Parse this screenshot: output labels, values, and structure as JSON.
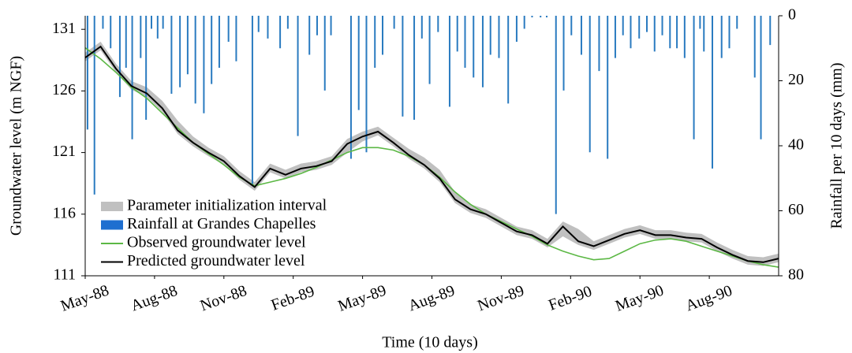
{
  "chart_data": {
    "type": "line",
    "x_label": "Time (10 days)",
    "y_label": "Groundwater level (m NGF)",
    "y2_label": "Rainfall per 10 days (mm)",
    "xlim": [
      0,
      90
    ],
    "xticks": [
      {
        "value": 0,
        "label": "May-88"
      },
      {
        "value": 9,
        "label": "Aug-88"
      },
      {
        "value": 18,
        "label": "Nov-88"
      },
      {
        "value": 27,
        "label": "Feb-89"
      },
      {
        "value": 36,
        "label": "May-89"
      },
      {
        "value": 45,
        "label": "Aug-89"
      },
      {
        "value": 54,
        "label": "Nov-89"
      },
      {
        "value": 63,
        "label": "Feb-90"
      },
      {
        "value": 72,
        "label": "May-90"
      },
      {
        "value": 81,
        "label": "Aug-90"
      }
    ],
    "ylim": [
      111,
      132.1
    ],
    "yticks": [
      111,
      116,
      121,
      126,
      131
    ],
    "y2lim": [
      0,
      80
    ],
    "y2ticks": [
      0,
      20,
      40,
      60,
      80
    ],
    "y2_inverted": true,
    "legend": "lower-left",
    "series": [
      {
        "name": "Parameter initialization interval",
        "type": "band",
        "color": "#c0c0c0",
        "x": [
          0,
          2,
          4,
          6,
          8,
          10,
          12,
          14,
          16,
          18,
          20,
          22,
          24,
          26,
          28,
          30,
          32,
          34,
          36,
          38,
          40,
          42,
          44,
          46,
          48,
          50,
          52,
          54,
          56,
          58,
          60,
          62,
          64,
          66,
          68,
          70,
          72,
          74,
          76,
          78,
          80,
          82,
          84,
          86,
          88,
          90
        ],
        "lower": [
          128.4,
          129.3,
          127.5,
          126.1,
          125.5,
          124.3,
          122.5,
          121.5,
          120.7,
          120.0,
          118.8,
          117.9,
          119.4,
          118.9,
          119.4,
          119.6,
          120.0,
          121.0,
          121.9,
          122.4,
          121.5,
          120.5,
          119.7,
          118.6,
          116.9,
          116.1,
          115.7,
          115.0,
          114.3,
          114.0,
          113.3,
          114.2,
          113.5,
          113.1,
          113.6,
          114.1,
          114.4,
          114.0,
          114.0,
          113.8,
          113.7,
          113.0,
          112.4,
          111.9,
          111.8,
          112.1
        ],
        "upper": [
          129.1,
          130.0,
          128.2,
          126.8,
          126.3,
          125.2,
          123.6,
          122.3,
          121.4,
          120.7,
          119.5,
          118.6,
          120.1,
          119.6,
          120.1,
          120.3,
          120.7,
          122.1,
          122.7,
          123.1,
          122.2,
          121.3,
          120.6,
          119.6,
          117.8,
          116.8,
          116.4,
          115.7,
          115.0,
          114.7,
          114.0,
          115.4,
          114.8,
          113.8,
          114.3,
          114.8,
          115.1,
          114.7,
          114.7,
          114.5,
          114.4,
          113.7,
          113.1,
          112.6,
          112.5,
          112.8
        ]
      },
      {
        "name": "Rainfall at Grandes Chapelles",
        "type": "bar",
        "axis": "y2",
        "color": "#2a7bc0",
        "x": [
          0.3,
          1.2,
          2.3,
          3.3,
          4.5,
          5.3,
          6.1,
          7.2,
          7.9,
          8.6,
          9.4,
          10.1,
          11.2,
          12.3,
          13.3,
          14.3,
          15.4,
          16.4,
          17.4,
          18.6,
          19.6,
          21.7,
          22.5,
          23.7,
          25.3,
          26.3,
          27.6,
          29.1,
          30.1,
          31.1,
          31.9,
          34.5,
          35.5,
          36.5,
          37.6,
          38.6,
          40.1,
          41.2,
          42.7,
          43.7,
          44.7,
          45.8,
          47.3,
          48.3,
          49.3,
          50.4,
          51.6,
          52.6,
          53.7,
          54.9,
          56.0,
          57.0,
          58.0,
          59.1,
          59.9,
          61.1,
          62.1,
          63.1,
          64.4,
          65.5,
          66.7,
          67.8,
          68.8,
          69.8,
          70.8,
          71.9,
          72.9,
          73.9,
          74.9,
          75.9,
          76.8,
          77.8,
          79.0,
          79.8,
          80.3,
          81.4,
          82.6,
          83.6,
          84.6,
          86.9,
          87.7,
          88.9
        ],
        "values": [
          35,
          55,
          4,
          10,
          25,
          16,
          38,
          13,
          32,
          4,
          7,
          4,
          24,
          22,
          18,
          27,
          30,
          21,
          16,
          8,
          14,
          52,
          5,
          7,
          10,
          4,
          37,
          12,
          6,
          23,
          6,
          44,
          29,
          42,
          16,
          12,
          4,
          31,
          32,
          7,
          21,
          5,
          28,
          11,
          16,
          19,
          22,
          12,
          13,
          27,
          8,
          4,
          0.5,
          0.5,
          0.5,
          61,
          23,
          6,
          12,
          42,
          17,
          44,
          13,
          6,
          10,
          7,
          5,
          11,
          6,
          10,
          10,
          13,
          38,
          4,
          11,
          47,
          13,
          10,
          4,
          19,
          38,
          9
        ]
      },
      {
        "name": "Observed groundwater level",
        "type": "line",
        "color": "#5cb845",
        "x": [
          0,
          2,
          4,
          6,
          8,
          10,
          12,
          14,
          16,
          18,
          20,
          22,
          24,
          26,
          28,
          30,
          32,
          34,
          36,
          38,
          40,
          42,
          44,
          46,
          48,
          50,
          52,
          54,
          56,
          58,
          60,
          62,
          64,
          66,
          68,
          70,
          72,
          74,
          76,
          78,
          80,
          82,
          84,
          86,
          88,
          90
        ],
        "values": [
          129.5,
          128.6,
          127.5,
          126.3,
          125.4,
          124.2,
          123.0,
          121.8,
          120.9,
          120.0,
          119.0,
          118.3,
          118.6,
          118.9,
          119.3,
          119.8,
          120.4,
          121.0,
          121.4,
          121.4,
          121.2,
          120.7,
          120.0,
          119.0,
          117.8,
          116.8,
          116.0,
          115.4,
          114.8,
          114.2,
          113.5,
          113.0,
          112.6,
          112.3,
          112.4,
          113.0,
          113.6,
          113.9,
          114.0,
          113.8,
          113.4,
          113.0,
          112.6,
          112.2,
          111.9,
          111.7
        ]
      },
      {
        "name": "Predicted groundwater level",
        "type": "line",
        "color": "#000000",
        "x": [
          0,
          2,
          4,
          6,
          8,
          10,
          12,
          14,
          16,
          18,
          20,
          22,
          24,
          26,
          28,
          30,
          32,
          34,
          36,
          38,
          40,
          42,
          44,
          46,
          48,
          50,
          52,
          54,
          56,
          58,
          60,
          62,
          64,
          66,
          68,
          70,
          72,
          74,
          76,
          78,
          80,
          82,
          84,
          86,
          88,
          90
        ],
        "values": [
          128.7,
          129.6,
          127.8,
          126.4,
          125.8,
          124.6,
          122.8,
          121.8,
          121.0,
          120.3,
          119.1,
          118.2,
          119.7,
          119.2,
          119.7,
          119.9,
          120.3,
          121.7,
          122.3,
          122.7,
          121.8,
          120.8,
          120.0,
          118.9,
          117.2,
          116.4,
          116.0,
          115.3,
          114.6,
          114.3,
          113.6,
          115.0,
          113.8,
          113.4,
          113.9,
          114.4,
          114.7,
          114.3,
          114.3,
          114.1,
          114.0,
          113.3,
          112.7,
          112.2,
          112.1,
          112.4
        ]
      }
    ]
  }
}
